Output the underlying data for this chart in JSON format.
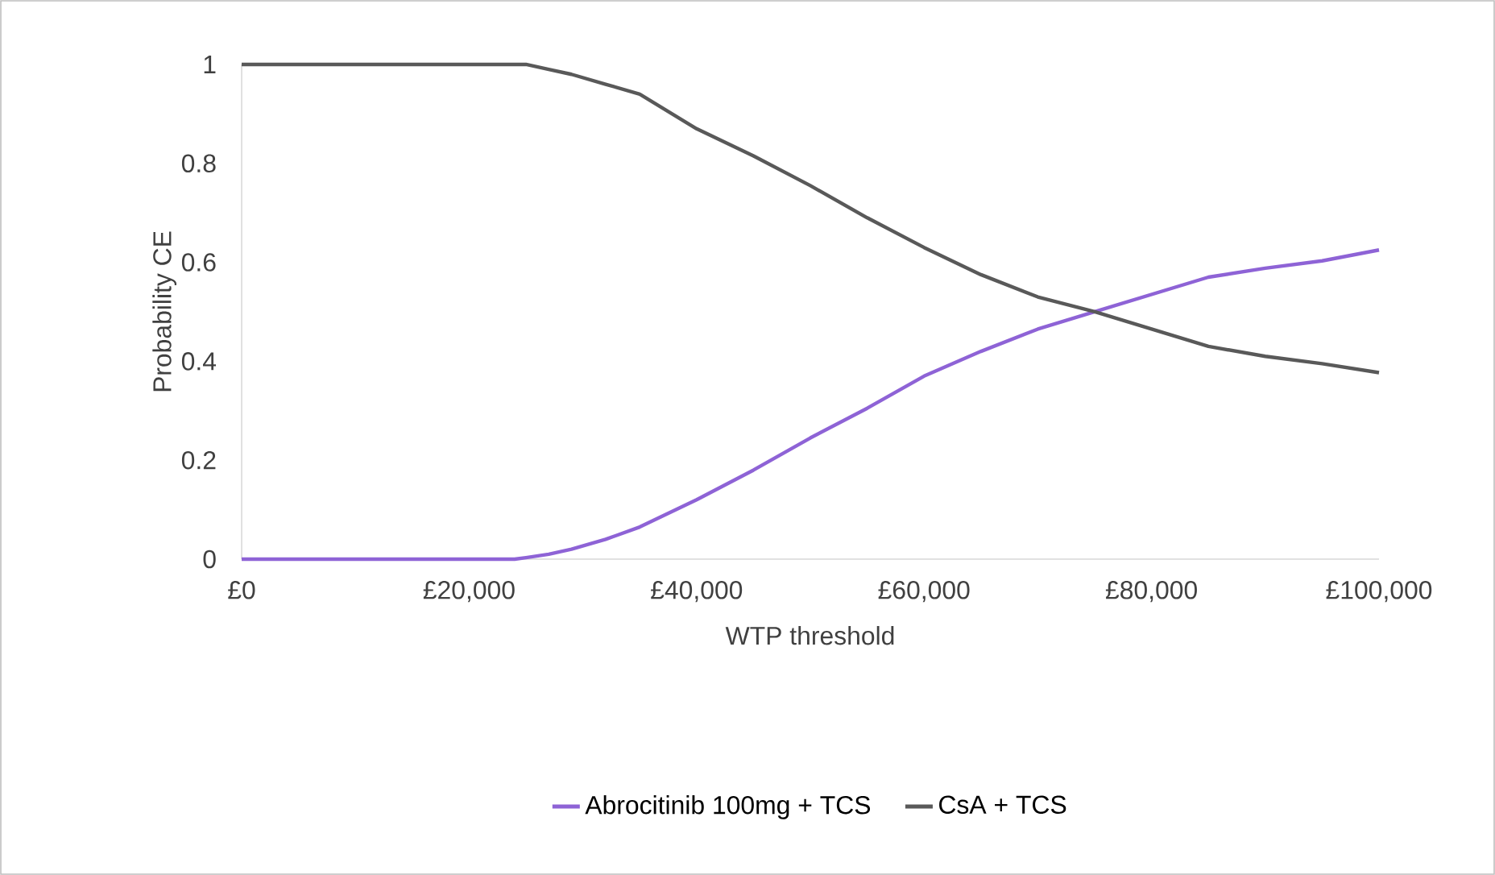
{
  "chart_data": {
    "type": "line",
    "xlabel": "WTP threshold",
    "ylabel": "Probability CE",
    "xlim": [
      0,
      100000
    ],
    "ylim": [
      0,
      1
    ],
    "xticks": [
      {
        "value": 0,
        "label": "£0"
      },
      {
        "value": 20000,
        "label": "£20,000"
      },
      {
        "value": 40000,
        "label": "£40,000"
      },
      {
        "value": 60000,
        "label": "£60,000"
      },
      {
        "value": 80000,
        "label": "£80,000"
      },
      {
        "value": 100000,
        "label": "£100,000"
      }
    ],
    "yticks": [
      0,
      0.2,
      0.4,
      0.6,
      0.8,
      1
    ],
    "grid": false,
    "legend": "bottom",
    "marker": "none",
    "line_style": "solid",
    "x": [
      0,
      5000,
      10000,
      15000,
      20000,
      24000,
      25000,
      27000,
      29000,
      32000,
      35000,
      40000,
      45000,
      50000,
      55000,
      60000,
      65000,
      70000,
      75000,
      80000,
      85000,
      90000,
      95000,
      100000
    ],
    "series": [
      {
        "name": "Abrocitinib 100mg + TCS",
        "color": "#8e63d6",
        "values": [
          0,
          0,
          0,
          0,
          0,
          0,
          0.003,
          0.01,
          0.02,
          0.04,
          0.065,
          0.12,
          0.18,
          0.245,
          0.305,
          0.37,
          0.42,
          0.465,
          0.5,
          0.535,
          0.57,
          0.588,
          0.603,
          0.625
        ]
      },
      {
        "name": "CsA + TCS",
        "color": "#595959",
        "values": [
          1,
          1,
          1,
          1,
          1,
          1,
          1,
          0.99,
          0.98,
          0.96,
          0.94,
          0.87,
          0.815,
          0.755,
          0.69,
          0.63,
          0.575,
          0.53,
          0.5,
          0.465,
          0.43,
          0.41,
          0.395,
          0.377
        ]
      }
    ]
  }
}
